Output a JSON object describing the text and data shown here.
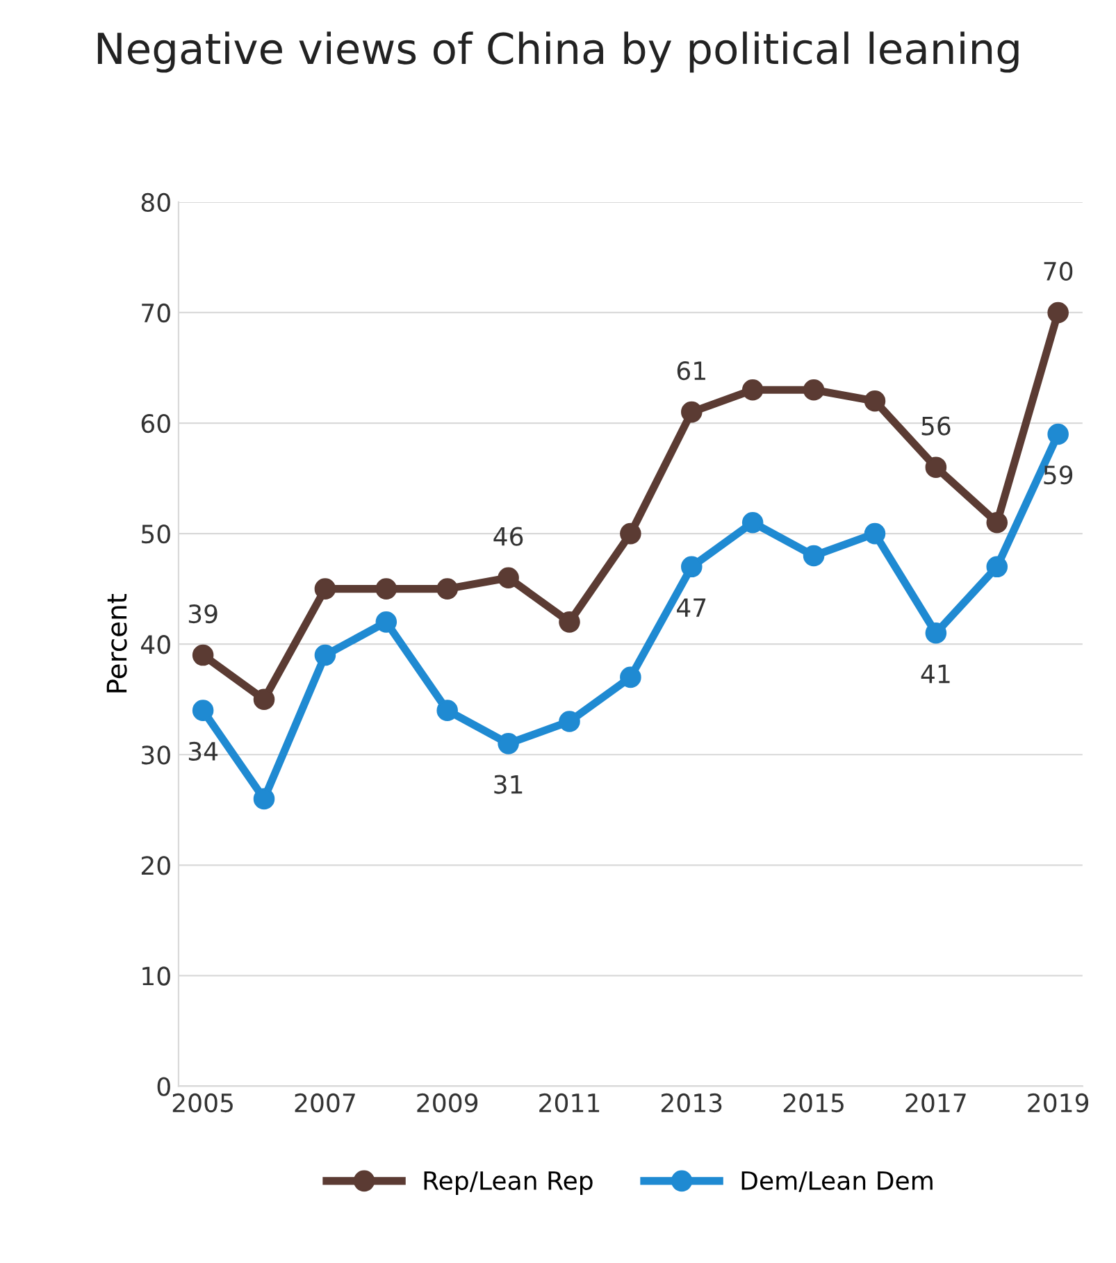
{
  "chart_data": {
    "type": "line",
    "title": "Negative views of China by political leaning",
    "ylabel": "Percent",
    "x": [
      2005,
      2006,
      2007,
      2008,
      2009,
      2010,
      2011,
      2012,
      2013,
      2014,
      2015,
      2016,
      2017,
      2018,
      2019
    ],
    "series": [
      {
        "name": "Rep/Lean Rep",
        "color": "#5b3b33",
        "values": [
          39,
          35,
          45,
          45,
          45,
          46,
          42,
          50,
          61,
          63,
          63,
          62,
          56,
          51,
          70
        ],
        "value_labels": [
          "39",
          null,
          null,
          null,
          null,
          "46",
          null,
          null,
          "61",
          null,
          null,
          null,
          "56",
          null,
          "70"
        ]
      },
      {
        "name": "Dem/Lean Dem",
        "color": "#1f8ad2",
        "values": [
          34,
          26,
          39,
          42,
          34,
          31,
          33,
          37,
          47,
          51,
          48,
          50,
          41,
          47,
          59
        ],
        "value_labels": [
          "34",
          null,
          null,
          null,
          null,
          "31",
          null,
          null,
          "47",
          null,
          null,
          null,
          "41",
          null,
          "59"
        ]
      }
    ],
    "xlim": [
      2004.6,
      2019.4
    ],
    "xticks": [
      2005,
      2007,
      2009,
      2011,
      2013,
      2015,
      2017,
      2019
    ],
    "ylim": [
      0,
      80
    ],
    "yticks": [
      0,
      10,
      20,
      30,
      40,
      50,
      60,
      70,
      80
    ],
    "grid": "y",
    "legend": "bottom",
    "marker": "circle",
    "line_style": "solid"
  }
}
